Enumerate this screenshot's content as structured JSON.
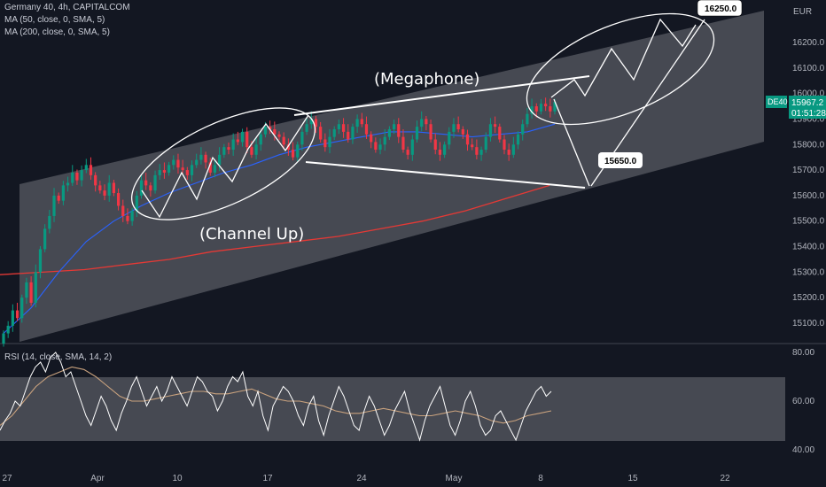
{
  "legend": {
    "symbol_line": "Germany 40, 4h, CAPITALCOM",
    "ma50": "MA (50, close, 0, SMA, 5)",
    "ma200": "MA (200, close, 0, SMA, 5)",
    "rsi": "RSI (14, close, SMA, 14, 2)"
  },
  "currency": "EUR",
  "price_tag": {
    "symbol": "DE40",
    "price": "15967.2",
    "countdown": "01:51:28",
    "color": "#089981"
  },
  "annotations": {
    "megaphone": "(Megaphone)",
    "channel": "(Channel Up)",
    "target_high": "16250.0",
    "target_low": "15650.0"
  },
  "colors": {
    "background": "#131722",
    "up": "#089981",
    "down": "#f23645",
    "ma50": "#2962ff",
    "ma200": "#e53935",
    "channel_fill": "#ffffff",
    "drawing": "#ffffff"
  },
  "chart_data": [
    {
      "type": "candlestick",
      "title": "Germany 40, 4h, CAPITALCOM",
      "y_axis_side": "right",
      "ylim": [
        15020,
        16320
      ],
      "y_ticks": [
        16200.0,
        16100.0,
        16000.0,
        15900.0,
        15800.0,
        15700.0,
        15600.0,
        15500.0,
        15400.0,
        15300.0,
        15200.0,
        15100.0
      ],
      "x_ticks": [
        "27",
        "Apr",
        "10",
        "17",
        "24",
        "May",
        "8",
        "15",
        "22"
      ],
      "close": [
        15060,
        15090,
        15150,
        15120,
        15200,
        15260,
        15180,
        15300,
        15390,
        15470,
        15520,
        15600,
        15580,
        15640,
        15650,
        15690,
        15660,
        15700,
        15720,
        15680,
        15640,
        15620,
        15600,
        15650,
        15610,
        15560,
        15520,
        15500,
        15540,
        15600,
        15660,
        15640,
        15620,
        15680,
        15700,
        15690,
        15720,
        15740,
        15710,
        15700,
        15680,
        15720,
        15740,
        15760,
        15730,
        15690,
        15720,
        15760,
        15790,
        15780,
        15820,
        15810,
        15850,
        15790,
        15760,
        15800,
        15840,
        15870,
        15860,
        15840,
        15830,
        15800,
        15780,
        15750,
        15800,
        15850,
        15880,
        15900,
        15870,
        15820,
        15790,
        15830,
        15860,
        15880,
        15850,
        15820,
        15870,
        15900,
        15880,
        15840,
        15810,
        15780,
        15800,
        15830,
        15860,
        15880,
        15830,
        15780,
        15760,
        15820,
        15870,
        15900,
        15880,
        15820,
        15780,
        15760,
        15800,
        15850,
        15880,
        15860,
        15840,
        15800,
        15790,
        15760,
        15780,
        15830,
        15880,
        15870,
        15820,
        15780,
        15760,
        15800,
        15840,
        15880,
        15920,
        15950,
        15930,
        15960,
        15950,
        15930,
        15967.2
      ],
      "ma50_approx": [
        15060,
        15160,
        15300,
        15420,
        15500,
        15560,
        15610,
        15650,
        15690,
        15720,
        15760,
        15790,
        15810,
        15830,
        15850,
        15850,
        15840,
        15830,
        15840,
        15850,
        15880
      ],
      "ma200_approx": [
        15290,
        15300,
        15310,
        15330,
        15350,
        15380,
        15400,
        15420,
        15440,
        15470,
        15500,
        15540,
        15590,
        15640
      ],
      "annotations": [
        "(Megaphone)",
        "(Channel Up)",
        "16250.0",
        "15650.0"
      ]
    },
    {
      "type": "line",
      "title": "RSI (14, close, SMA, 14, 2)",
      "ylim": [
        36,
        80
      ],
      "y_ticks": [
        80.0,
        60.0,
        40.0
      ],
      "band": [
        30,
        70
      ],
      "rsi": [
        48,
        52,
        55,
        60,
        58,
        64,
        70,
        74,
        76,
        72,
        78,
        80,
        76,
        70,
        72,
        66,
        60,
        54,
        50,
        56,
        62,
        58,
        52,
        48,
        55,
        60,
        66,
        70,
        64,
        58,
        62,
        66,
        60,
        64,
        70,
        66,
        62,
        58,
        64,
        70,
        68,
        64,
        62,
        56,
        60,
        66,
        70,
        68,
        72,
        62,
        58,
        64,
        54,
        48,
        58,
        62,
        66,
        64,
        60,
        54,
        50,
        58,
        62,
        52,
        46,
        54,
        60,
        66,
        62,
        56,
        50,
        48,
        56,
        62,
        58,
        52,
        46,
        50,
        56,
        60,
        64,
        56,
        50,
        44,
        52,
        58,
        62,
        66,
        58,
        50,
        46,
        52,
        60,
        64,
        58,
        50,
        46,
        48,
        54,
        56,
        52,
        48,
        44,
        50,
        56,
        60,
        64,
        66,
        62,
        64
      ],
      "rsi_ma": [
        50,
        54,
        60,
        66,
        70,
        72,
        74,
        73,
        70,
        66,
        62,
        60,
        60,
        61,
        62,
        63,
        64,
        64,
        63,
        63,
        64,
        65,
        63,
        61,
        60,
        60,
        59,
        58,
        56,
        55,
        55,
        56,
        57,
        56,
        55,
        54,
        54,
        55,
        56,
        55,
        54,
        52,
        51,
        52,
        54,
        55,
        56
      ]
    }
  ]
}
